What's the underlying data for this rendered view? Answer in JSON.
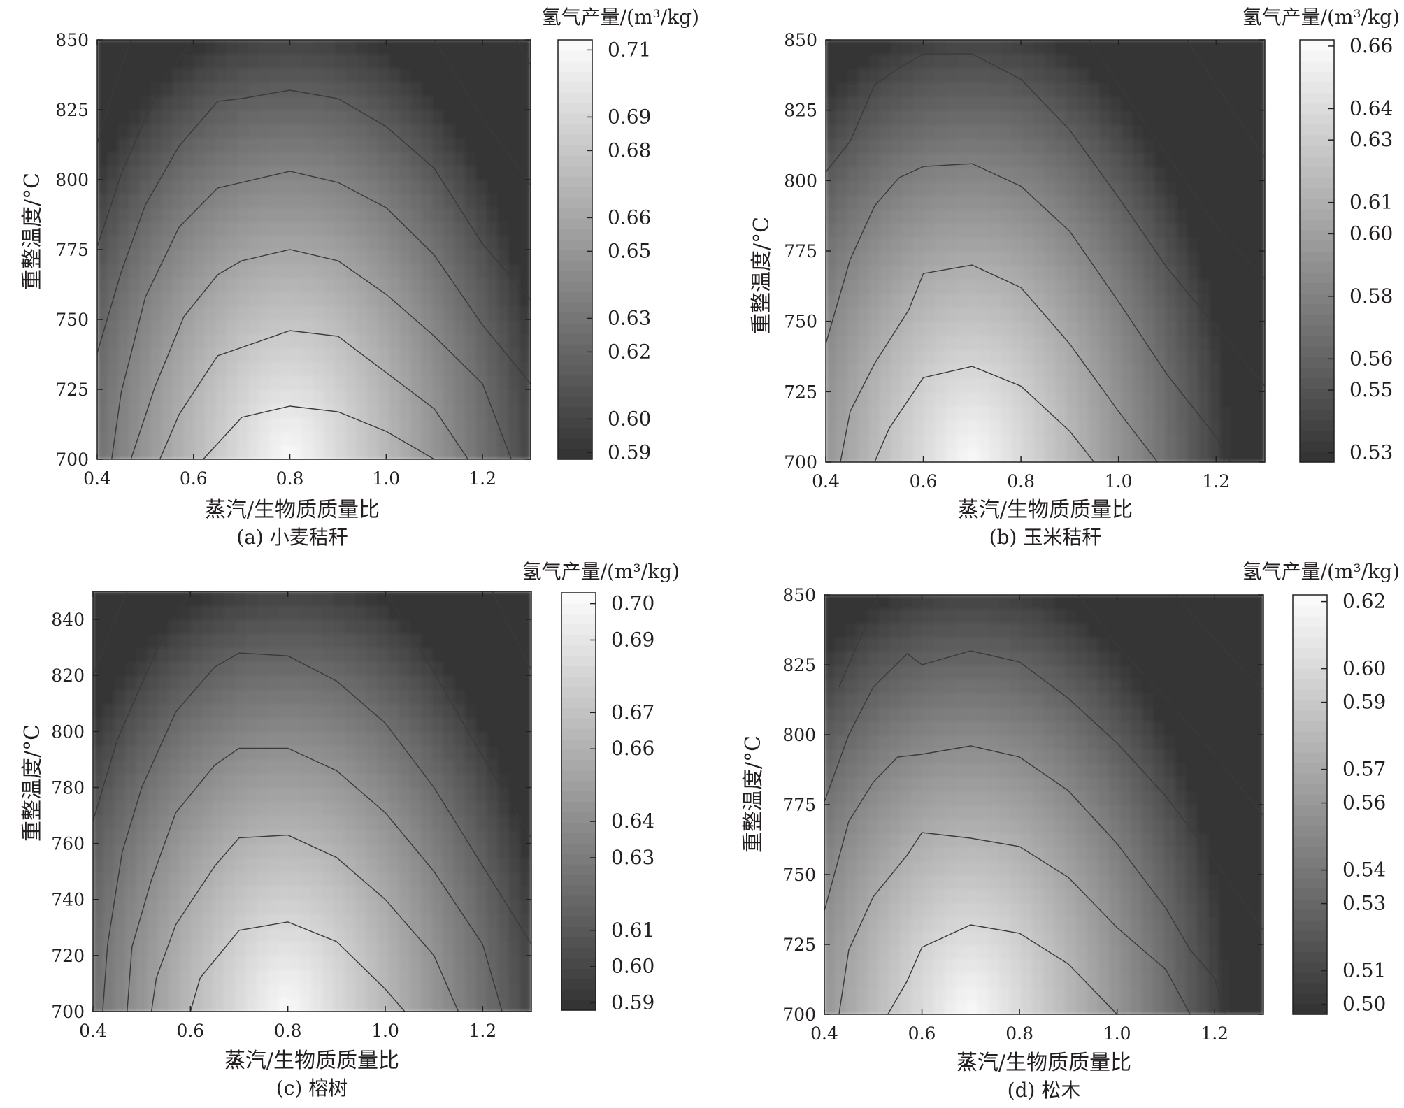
{
  "chart_data": [
    {
      "type": "contour",
      "caption": "(a) 小麦秸秆",
      "xlabel": "蒸汽/生物质质量比",
      "ylabel": "重整温度/°C",
      "xlim": [
        0.4,
        1.3
      ],
      "ylim": [
        700,
        850
      ],
      "xticks": [
        "0.4",
        "0.6",
        "0.8",
        "1.0",
        "1.2"
      ],
      "yticks": [
        "700",
        "725",
        "750",
        "775",
        "800",
        "825",
        "850"
      ],
      "colorbar": {
        "title": "氢气产量/(m³/kg)",
        "range": [
          0.588,
          0.713
        ],
        "ticks": [
          "0.59",
          "0.60",
          "0.62",
          "0.63",
          "0.65",
          "0.66",
          "0.68",
          "0.69",
          "0.71"
        ]
      },
      "peak": {
        "x": 0.8,
        "y": 700,
        "value": 0.71
      },
      "contours": [
        {
          "points": [
            [
              0.62,
              700
            ],
            [
              0.7,
              715
            ],
            [
              0.8,
              719
            ],
            [
              0.9,
              717
            ],
            [
              1.0,
              710
            ],
            [
              1.1,
              700
            ]
          ]
        },
        {
          "points": [
            [
              0.53,
              700
            ],
            [
              0.57,
              716
            ],
            [
              0.65,
              737
            ],
            [
              0.7,
              740
            ],
            [
              0.8,
              746
            ],
            [
              0.9,
              744
            ],
            [
              1.0,
              731
            ],
            [
              1.1,
              718
            ],
            [
              1.17,
              700
            ]
          ]
        },
        {
          "points": [
            [
              0.47,
              700
            ],
            [
              0.52,
              726
            ],
            [
              0.58,
              751
            ],
            [
              0.65,
              766
            ],
            [
              0.7,
              771
            ],
            [
              0.8,
              775
            ],
            [
              0.9,
              771
            ],
            [
              1.0,
              759
            ],
            [
              1.1,
              744
            ],
            [
              1.2,
              727
            ],
            [
              1.26,
              700
            ]
          ]
        },
        {
          "points": [
            [
              0.43,
              700
            ],
            [
              0.45,
              724
            ],
            [
              0.5,
              758
            ],
            [
              0.57,
              783
            ],
            [
              0.65,
              797
            ],
            [
              0.7,
              799
            ],
            [
              0.8,
              803
            ],
            [
              0.9,
              799
            ],
            [
              1.0,
              790
            ],
            [
              1.1,
              773
            ],
            [
              1.2,
              748
            ],
            [
              1.3,
              727
            ]
          ]
        },
        {
          "points": [
            [
              0.4,
              738
            ],
            [
              0.45,
              767
            ],
            [
              0.5,
              791
            ],
            [
              0.57,
              812
            ],
            [
              0.65,
              828
            ],
            [
              0.7,
              829
            ],
            [
              0.8,
              832
            ],
            [
              0.9,
              829
            ],
            [
              1.0,
              819
            ],
            [
              1.1,
              804
            ],
            [
              1.2,
              777
            ],
            [
              1.3,
              757
            ]
          ]
        },
        {
          "points": [
            [
              0.4,
              776
            ],
            [
              0.45,
              802
            ],
            [
              0.5,
              822
            ],
            [
              0.55,
              839
            ],
            [
              0.6,
              850
            ]
          ]
        },
        {
          "points": [
            [
              1.1,
              850
            ],
            [
              1.2,
              822
            ],
            [
              1.3,
              798
            ]
          ]
        },
        {
          "points": [
            [
              0.4,
              813
            ],
            [
              0.43,
              830
            ],
            [
              0.47,
              850
            ]
          ]
        },
        {
          "points": [
            [
              1.27,
              850
            ],
            [
              1.3,
              841
            ]
          ]
        }
      ]
    },
    {
      "type": "contour",
      "caption": "(b) 玉米秸秆",
      "xlabel": "蒸汽/生物质质量比",
      "ylabel": "重整温度/°C",
      "xlim": [
        0.4,
        1.3
      ],
      "ylim": [
        700,
        850
      ],
      "xticks": [
        "0.4",
        "0.6",
        "0.8",
        "1.0",
        "1.2"
      ],
      "yticks": [
        "700",
        "725",
        "750",
        "775",
        "800",
        "825",
        "850"
      ],
      "colorbar": {
        "title": "氢气产量/(m³/kg)",
        "range": [
          0.527,
          0.662
        ],
        "ticks": [
          "0.53",
          "0.55",
          "0.56",
          "0.58",
          "0.60",
          "0.61",
          "0.63",
          "0.64",
          "0.66"
        ]
      },
      "peak": {
        "x": 0.7,
        "y": 700,
        "value": 0.66
      },
      "contours": [
        {
          "points": [
            [
              0.5,
              700
            ],
            [
              0.53,
              712
            ],
            [
              0.6,
              730
            ],
            [
              0.7,
              734
            ],
            [
              0.8,
              727
            ],
            [
              0.9,
              711
            ],
            [
              0.95,
              700
            ]
          ]
        },
        {
          "points": [
            [
              0.43,
              700
            ],
            [
              0.45,
              718
            ],
            [
              0.5,
              735
            ],
            [
              0.57,
              754
            ],
            [
              0.6,
              767
            ],
            [
              0.7,
              770
            ],
            [
              0.8,
              762
            ],
            [
              0.9,
              742
            ],
            [
              1.0,
              718
            ],
            [
              1.08,
              700
            ]
          ]
        },
        {
          "points": [
            [
              0.4,
              742
            ],
            [
              0.45,
              772
            ],
            [
              0.5,
              791
            ],
            [
              0.55,
              801
            ],
            [
              0.6,
              805
            ],
            [
              0.7,
              806
            ],
            [
              0.8,
              798
            ],
            [
              0.9,
              782
            ],
            [
              1.0,
              757
            ],
            [
              1.1,
              731
            ],
            [
              1.2,
              709
            ],
            [
              1.23,
              700
            ]
          ]
        },
        {
          "points": [
            [
              0.4,
              803
            ],
            [
              0.45,
              814
            ],
            [
              0.5,
              834
            ],
            [
              0.55,
              840
            ],
            [
              0.6,
              845
            ],
            [
              0.7,
              845
            ],
            [
              0.8,
              836
            ],
            [
              0.9,
              818
            ],
            [
              1.0,
              794
            ],
            [
              1.1,
              769
            ],
            [
              1.2,
              748
            ],
            [
              1.3,
              727
            ]
          ]
        },
        {
          "points": [
            [
              0.94,
              850
            ],
            [
              1.0,
              834
            ],
            [
              1.1,
              809
            ],
            [
              1.2,
              784
            ],
            [
              1.3,
              765
            ]
          ]
        },
        {
          "points": [
            [
              1.14,
              850
            ],
            [
              1.2,
              834
            ],
            [
              1.3,
              808
            ]
          ]
        }
      ]
    },
    {
      "type": "contour",
      "caption": "(c) 榕树",
      "xlabel": "蒸汽/生物质质量比",
      "ylabel": "重整温度/°C",
      "xlim": [
        0.4,
        1.3
      ],
      "ylim": [
        700,
        850
      ],
      "xticks": [
        "0.4",
        "0.6",
        "0.8",
        "1.0",
        "1.2"
      ],
      "yticks": [
        "700",
        "720",
        "740",
        "760",
        "780",
        "800",
        "820",
        "840"
      ],
      "colorbar": {
        "title": "氢气产量/(m³/kg)",
        "range": [
          0.588,
          0.703
        ],
        "ticks": [
          "0.59",
          "0.60",
          "0.61",
          "0.63",
          "0.64",
          "0.66",
          "0.67",
          "0.69",
          "0.70"
        ]
      },
      "peak": {
        "x": 0.8,
        "y": 700,
        "value": 0.7
      },
      "contours": [
        {
          "points": [
            [
              0.6,
              700
            ],
            [
              0.62,
              712
            ],
            [
              0.7,
              729
            ],
            [
              0.8,
              732
            ],
            [
              0.9,
              725
            ],
            [
              1.0,
              708
            ],
            [
              1.04,
              700
            ]
          ]
        },
        {
          "points": [
            [
              0.52,
              700
            ],
            [
              0.53,
              712
            ],
            [
              0.57,
              731
            ],
            [
              0.65,
              752
            ],
            [
              0.7,
              762
            ],
            [
              0.8,
              763
            ],
            [
              0.9,
              755
            ],
            [
              1.0,
              740
            ],
            [
              1.1,
              720
            ],
            [
              1.15,
              700
            ]
          ]
        },
        {
          "points": [
            [
              0.47,
              700
            ],
            [
              0.48,
              723
            ],
            [
              0.52,
              747
            ],
            [
              0.57,
              771
            ],
            [
              0.65,
              788
            ],
            [
              0.7,
              794
            ],
            [
              0.8,
              794
            ],
            [
              0.9,
              786
            ],
            [
              1.0,
              771
            ],
            [
              1.1,
              750
            ],
            [
              1.2,
              724
            ],
            [
              1.24,
              700
            ]
          ]
        },
        {
          "points": [
            [
              0.42,
              700
            ],
            [
              0.43,
              724
            ],
            [
              0.46,
              757
            ],
            [
              0.5,
              780
            ],
            [
              0.57,
              807
            ],
            [
              0.65,
              823
            ],
            [
              0.7,
              828
            ],
            [
              0.8,
              827
            ],
            [
              0.9,
              818
            ],
            [
              1.0,
              803
            ],
            [
              1.1,
              780
            ],
            [
              1.2,
              752
            ],
            [
              1.3,
              724
            ]
          ]
        },
        {
          "points": [
            [
              0.4,
              768
            ],
            [
              0.45,
              797
            ],
            [
              0.5,
              817
            ],
            [
              0.55,
              836
            ],
            [
              0.6,
              850
            ]
          ]
        },
        {
          "points": [
            [
              1.0,
              850
            ],
            [
              1.1,
              821
            ],
            [
              1.2,
              791
            ],
            [
              1.3,
              762
            ]
          ]
        },
        {
          "points": [
            [
              0.4,
              820
            ],
            [
              0.45,
              842
            ],
            [
              0.47,
              850
            ]
          ]
        },
        {
          "points": [
            [
              1.22,
              850
            ],
            [
              1.3,
              822
            ]
          ]
        }
      ]
    },
    {
      "type": "contour",
      "caption": "(d) 松木",
      "xlabel": "蒸汽/生物质质量比",
      "ylabel": "重整温度/°C",
      "xlim": [
        0.4,
        1.3
      ],
      "ylim": [
        700,
        850
      ],
      "xticks": [
        "0.4",
        "0.6",
        "0.8",
        "1.0",
        "1.2"
      ],
      "yticks": [
        "700",
        "725",
        "750",
        "775",
        "800",
        "825",
        "850"
      ],
      "colorbar": {
        "title": "氢气产量/(m³/kg)",
        "range": [
          0.497,
          0.622
        ],
        "ticks": [
          "0.50",
          "0.51",
          "0.53",
          "0.54",
          "0.56",
          "0.57",
          "0.59",
          "0.60",
          "0.62"
        ]
      },
      "peak": {
        "x": 0.7,
        "y": 700,
        "value": 0.62
      },
      "contours": [
        {
          "points": [
            [
              0.53,
              700
            ],
            [
              0.57,
              712
            ],
            [
              0.6,
              724
            ],
            [
              0.7,
              732
            ],
            [
              0.8,
              729
            ],
            [
              0.9,
              718
            ],
            [
              1.0,
              700
            ]
          ]
        },
        {
          "points": [
            [
              0.43,
              700
            ],
            [
              0.45,
              723
            ],
            [
              0.5,
              742
            ],
            [
              0.57,
              757
            ],
            [
              0.6,
              765
            ],
            [
              0.7,
              763
            ],
            [
              0.8,
              760
            ],
            [
              0.9,
              749
            ],
            [
              1.0,
              731
            ],
            [
              1.1,
              716
            ],
            [
              1.15,
              700
            ]
          ]
        },
        {
          "points": [
            [
              0.4,
              737
            ],
            [
              0.45,
              769
            ],
            [
              0.5,
              783
            ],
            [
              0.55,
              792
            ],
            [
              0.6,
              793
            ],
            [
              0.7,
              796
            ],
            [
              0.8,
              792
            ],
            [
              0.9,
              780
            ],
            [
              1.0,
              761
            ],
            [
              1.1,
              738
            ],
            [
              1.15,
              723
            ],
            [
              1.2,
              713
            ],
            [
              1.22,
              700
            ]
          ]
        },
        {
          "points": [
            [
              0.4,
              776
            ],
            [
              0.45,
              800
            ],
            [
              0.5,
              817
            ],
            [
              0.57,
              829
            ],
            [
              0.6,
              825
            ],
            [
              0.7,
              830
            ],
            [
              0.8,
              826
            ],
            [
              0.9,
              813
            ],
            [
              1.0,
              797
            ],
            [
              1.1,
              778
            ],
            [
              1.2,
              755
            ],
            [
              1.3,
              730
            ]
          ]
        },
        {
          "points": [
            [
              0.43,
              817
            ],
            [
              0.47,
              833
            ],
            [
              0.5,
              845
            ],
            [
              0.51,
              850
            ]
          ]
        },
        {
          "points": [
            [
              0.92,
              850
            ],
            [
              1.0,
              832
            ],
            [
              1.1,
              813
            ],
            [
              1.2,
              793
            ],
            [
              1.3,
              771
            ]
          ]
        },
        {
          "points": [
            [
              1.12,
              850
            ],
            [
              1.2,
              834
            ],
            [
              1.3,
              816
            ]
          ]
        }
      ]
    }
  ]
}
